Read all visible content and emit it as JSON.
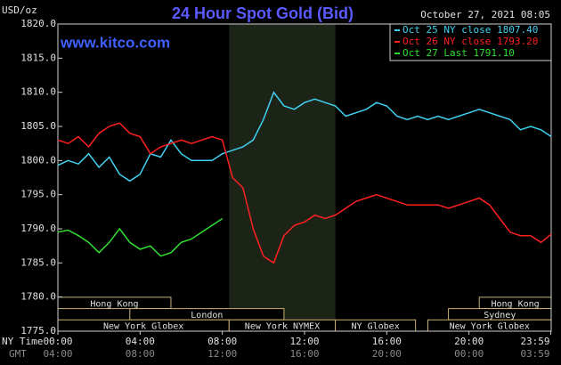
{
  "chart_data": {
    "type": "line",
    "title": "24 Hour Spot Gold (Bid)",
    "date": "October 27, 2021 08:05",
    "watermark": "www.kitco.com",
    "y_label": "USD/oz",
    "x_label": "NY Time",
    "x2_label": "GMT",
    "x": [
      0,
      0.5,
      1,
      1.5,
      2,
      2.5,
      3,
      3.5,
      4,
      4.5,
      5,
      5.5,
      6,
      6.5,
      7,
      7.5,
      8,
      8.5,
      9,
      9.5,
      10,
      10.5,
      11,
      11.5,
      12,
      12.5,
      13,
      13.5,
      14,
      14.5,
      15,
      15.5,
      16,
      16.5,
      17,
      17.5,
      18,
      18.5,
      19,
      19.5,
      20,
      20.5,
      21,
      21.5,
      22,
      22.5,
      23,
      23.5,
      24
    ],
    "series": [
      {
        "name": "Oct 25 NY close 1807.40",
        "color": "#40d0f0",
        "values": [
          1799.3,
          1800,
          1799.5,
          1801,
          1799,
          1800.5,
          1798,
          1797,
          1798,
          1801,
          1800.5,
          1803,
          1801,
          1800,
          1800,
          1800,
          1801,
          1801.5,
          1802,
          1803,
          1806,
          1810,
          1808,
          1807.5,
          1808.5,
          1809,
          1808.5,
          1808,
          1806.5,
          1807,
          1807.5,
          1808.5,
          1808,
          1806.5,
          1806,
          1806.5,
          1806,
          1806.5,
          1806,
          1806.5,
          1807,
          1807.5,
          1807,
          1806.5,
          1806,
          1804.5,
          1805,
          1804.5,
          1803.5
        ]
      },
      {
        "name": "Oct 26 NY close 1793.20",
        "color": "#ff2020",
        "values": [
          1803,
          1802.5,
          1803.5,
          1802,
          1804,
          1805,
          1805.5,
          1804,
          1803.5,
          1801,
          1802,
          1802.5,
          1803,
          1802.5,
          1803,
          1803.5,
          1803,
          1797.5,
          1796,
          1790,
          1786,
          1785,
          1789,
          1790.5,
          1791,
          1792,
          1791.5,
          1792,
          1793,
          1794,
          1794.5,
          1795,
          1794.5,
          1794,
          1793.5,
          1793.5,
          1793.5,
          1793.5,
          1793,
          1793.5,
          1794,
          1794.5,
          1793.5,
          1791.5,
          1789.5,
          1789,
          1789,
          1788,
          1789.2
        ]
      },
      {
        "name": "Oct 27 Last 1791.10",
        "color": "#30e030",
        "values": [
          1789.5,
          1789.8,
          1789,
          1788,
          1786.5,
          1788,
          1790,
          1788,
          1787,
          1787.5,
          1786,
          1786.5,
          1788,
          1788.5,
          1789.5,
          1790.5,
          1791.5,
          null,
          null,
          null,
          null,
          null,
          null,
          null,
          null,
          null,
          null,
          null,
          null,
          null,
          null,
          null,
          null,
          null,
          null,
          null,
          null,
          null,
          null,
          null,
          null,
          null,
          null,
          null,
          null,
          null,
          null,
          null,
          null
        ]
      }
    ],
    "xlim": [
      0,
      24
    ],
    "xticks": [
      {
        "value": 0,
        "label": "00:00"
      },
      {
        "value": 4,
        "label": "04:00"
      },
      {
        "value": 8,
        "label": "08:00"
      },
      {
        "value": 12,
        "label": "12:00"
      },
      {
        "value": 16,
        "label": "16:00"
      },
      {
        "value": 20,
        "label": "20:00"
      },
      {
        "value": 23.98,
        "label": "23:59"
      }
    ],
    "x2ticks": [
      {
        "value": 0,
        "label": "04:00"
      },
      {
        "value": 4,
        "label": "08:00"
      },
      {
        "value": 8,
        "label": "12:00"
      },
      {
        "value": 12,
        "label": "16:00"
      },
      {
        "value": 16,
        "label": "20:00"
      },
      {
        "value": 20,
        "label": "00:00"
      },
      {
        "value": 23.98,
        "label": "03:59"
      }
    ],
    "ylim": [
      1775,
      1820
    ],
    "yticks": [
      {
        "value": 1775,
        "label": "1775.0"
      },
      {
        "value": 1780,
        "label": "1780.0"
      },
      {
        "value": 1785,
        "label": "1785.0"
      },
      {
        "value": 1790,
        "label": "1790.0"
      },
      {
        "value": 1795,
        "label": "1795.0"
      },
      {
        "value": 1800,
        "label": "1800.0"
      },
      {
        "value": 1805,
        "label": "1805.0"
      },
      {
        "value": 1810,
        "label": "1810.0"
      },
      {
        "value": 1815,
        "label": "1815.0"
      },
      {
        "value": 1820,
        "label": "1820.0"
      }
    ],
    "shaded_range": [
      8.33,
      13.5
    ],
    "sessions": [
      [
        {
          "label": "Hong Kong",
          "start": 0,
          "end": 5.5
        },
        {
          "label": "Hong Kong",
          "start": 20.5,
          "end": 24
        }
      ],
      [
        {
          "label": "London",
          "start": 3.5,
          "end": 11
        },
        {
          "label": "Sydney",
          "start": 19,
          "end": 24
        }
      ],
      [
        {
          "label": "New York Globex",
          "start": 0,
          "end": 8.33
        },
        {
          "label": "New York NYMEX",
          "start": 8.33,
          "end": 13.5
        },
        {
          "label": "NY Globex",
          "start": 13.5,
          "end": 17.4
        },
        {
          "label": "New York Globex",
          "start": 18,
          "end": 24
        }
      ]
    ]
  }
}
